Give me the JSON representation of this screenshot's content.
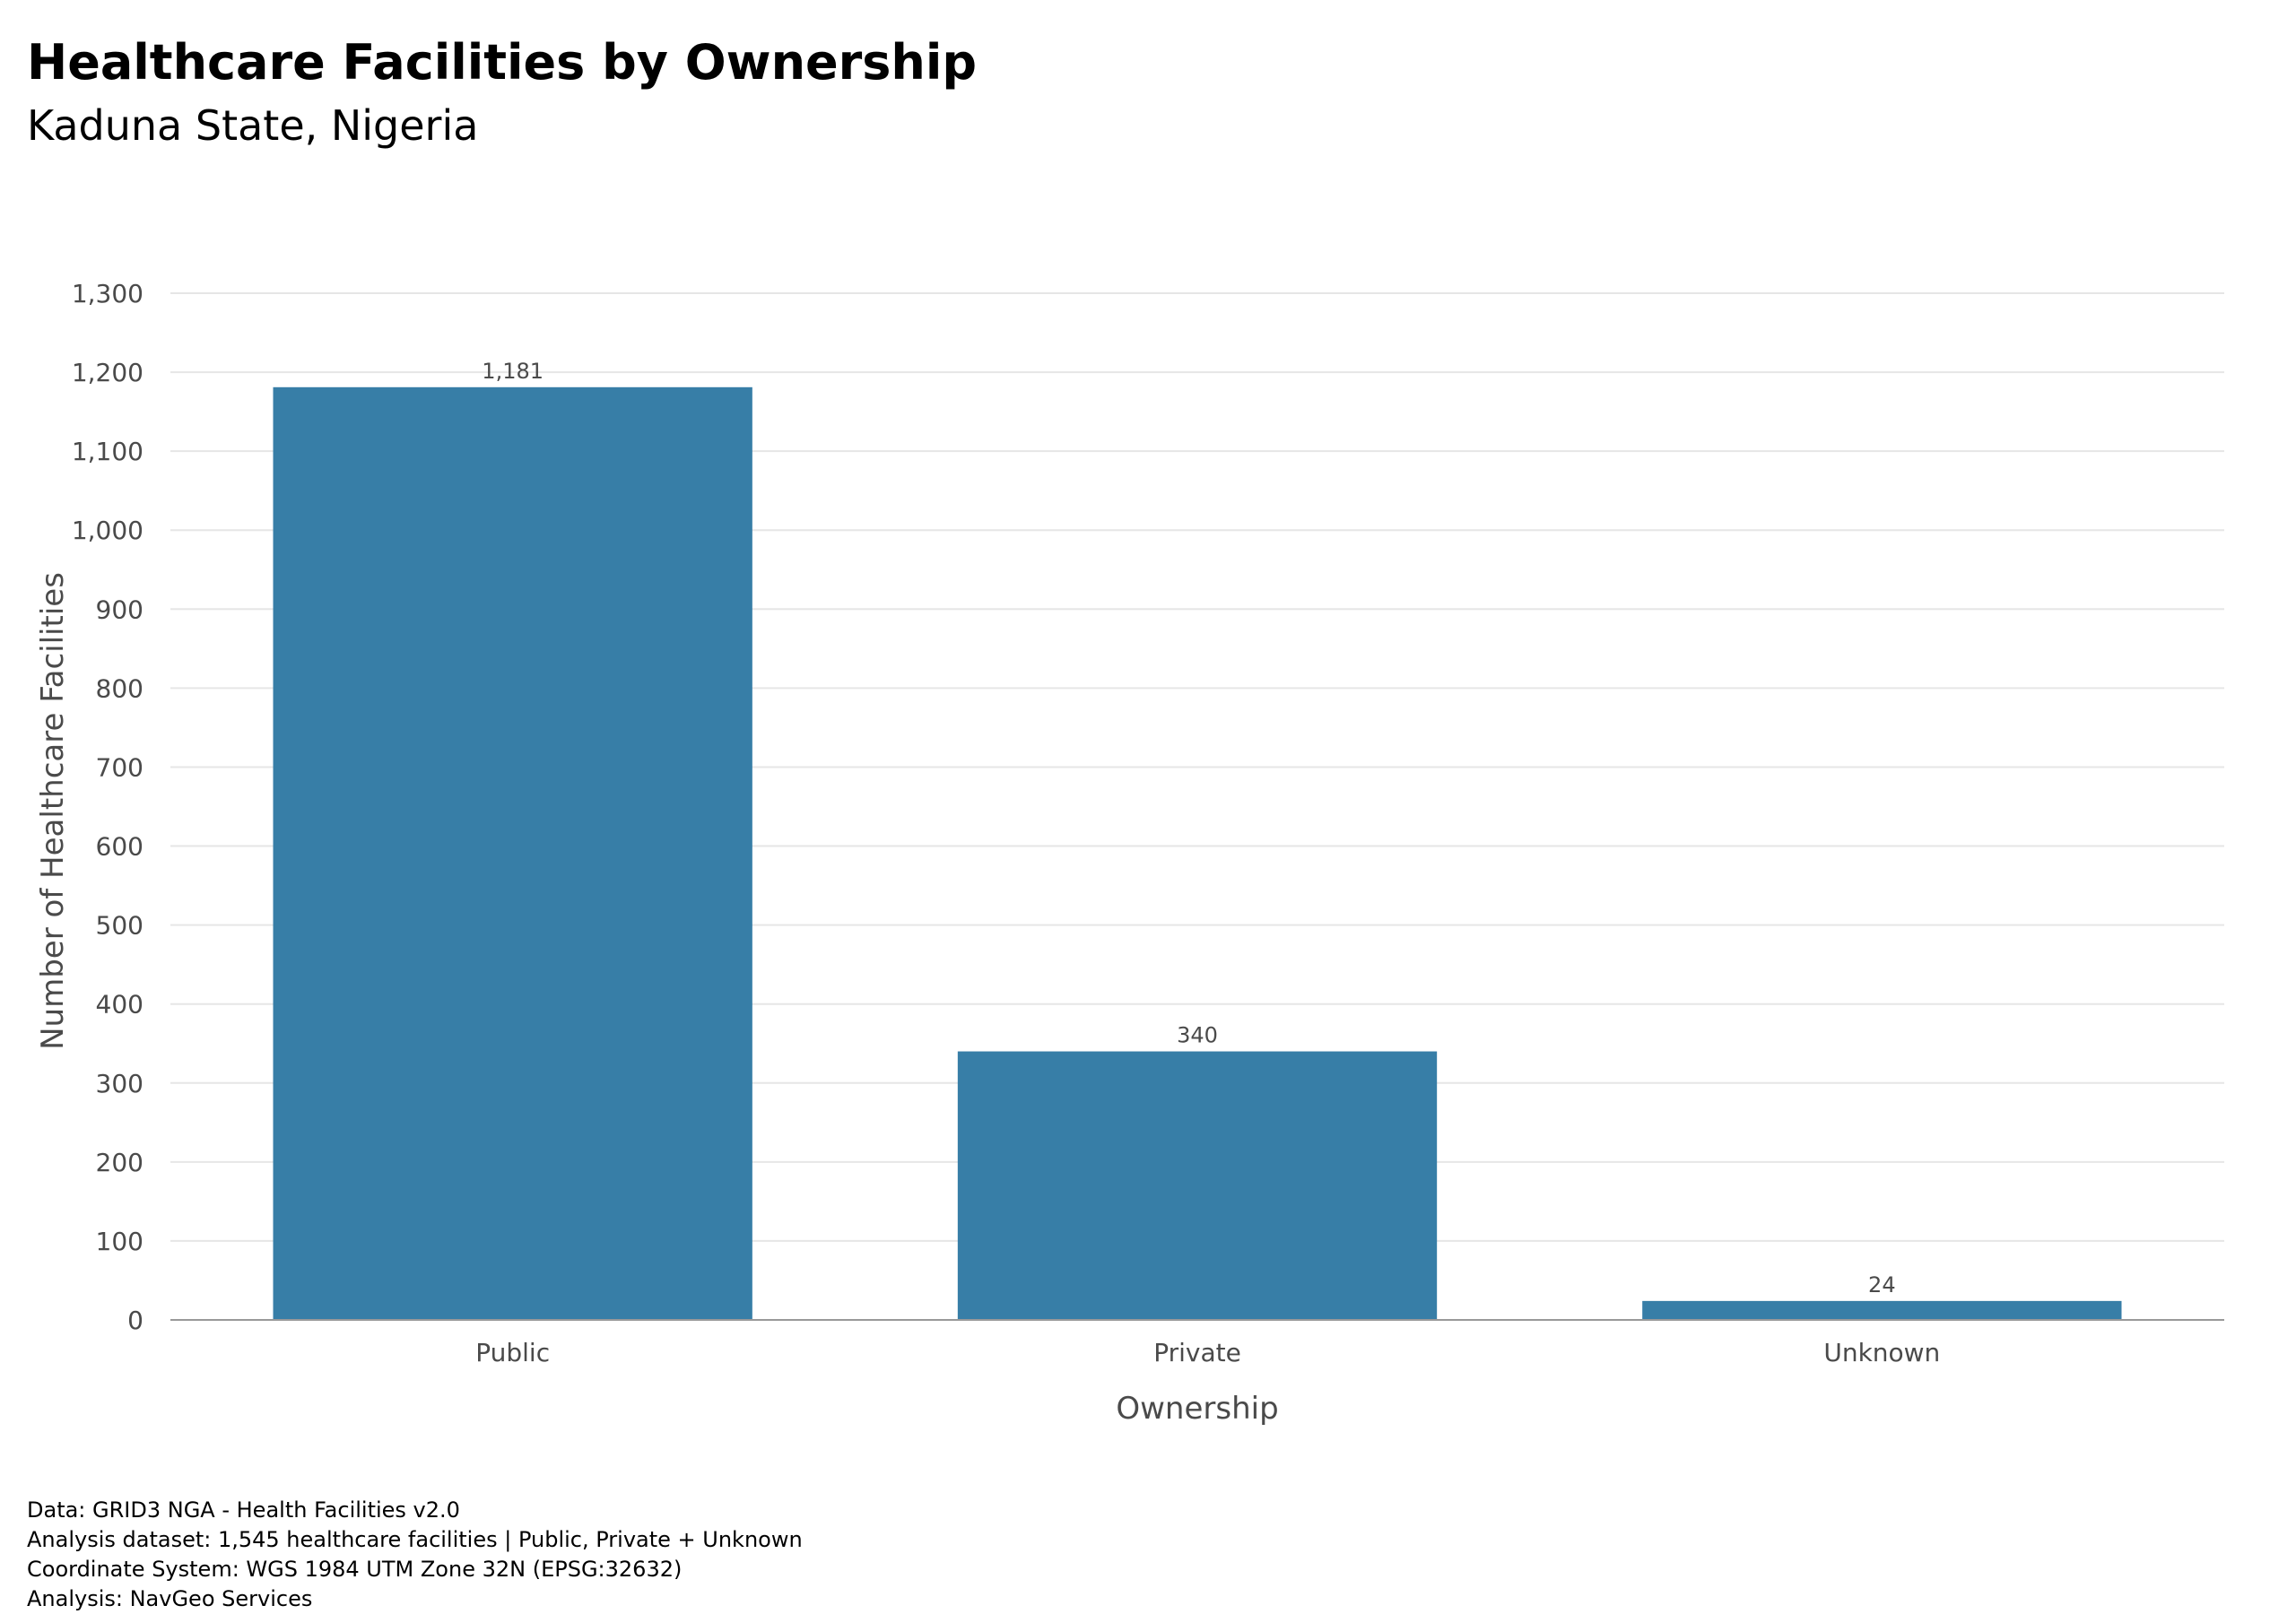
{
  "chart_data": {
    "type": "bar",
    "title": "Healthcare Facilities by Ownership",
    "subtitle": "Kaduna State, Nigeria",
    "xlabel": "Ownership",
    "ylabel": "Number of Healthcare Facilities",
    "categories": [
      "Public",
      "Private",
      "Unknown"
    ],
    "values": [
      1181,
      340,
      24
    ],
    "data_labels": [
      "1,181",
      "340",
      "24"
    ],
    "ylim": [
      0,
      1300
    ],
    "yticks": [
      0,
      100,
      200,
      300,
      400,
      500,
      600,
      700,
      800,
      900,
      1000,
      1100,
      1200,
      1300
    ],
    "ytick_labels": [
      "0",
      "100",
      "200",
      "300",
      "400",
      "500",
      "600",
      "700",
      "800",
      "900",
      "1,000",
      "1,100",
      "1,200",
      "1,300"
    ],
    "grid": "horizontal",
    "bar_color": "#377EA7"
  },
  "caption": [
    "Data: GRID3 NGA - Health Facilities v2.0",
    "Analysis dataset: 1,545 healthcare facilities | Public, Private + Unknown",
    "Coordinate System: WGS 1984 UTM Zone 32N (EPSG:32632)",
    "Analysis: NavGeo Services"
  ]
}
